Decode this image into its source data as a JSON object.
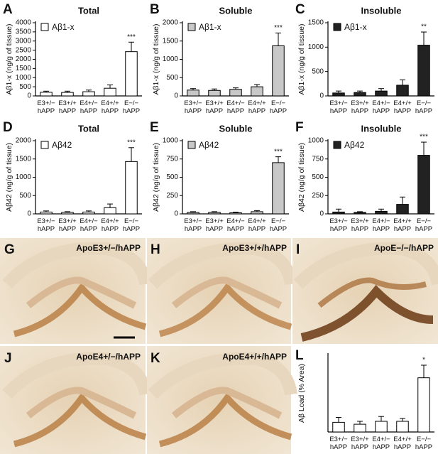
{
  "chart_data": [
    {
      "type": "bar",
      "panel": "A",
      "title": "Total",
      "ylabel": "Aβ1-x (ng/g of tissue)",
      "categories": [
        "E3+/− hAPP",
        "E3+/+ hAPP",
        "E4+/− hAPP",
        "E4+/+ hAPP",
        "E−/− hAPP"
      ],
      "series": [
        {
          "name": "Aβ1-x",
          "color": "#ffffff",
          "values": [
            200,
            190,
            230,
            420,
            2420
          ],
          "errors": [
            60,
            70,
            90,
            180,
            520
          ]
        }
      ],
      "significance": [
        null,
        null,
        null,
        null,
        "***"
      ],
      "ylim": [
        0,
        4000
      ],
      "yticks": [
        0,
        500,
        1000,
        1500,
        2000,
        2500,
        3000,
        3500,
        4000
      ]
    },
    {
      "type": "bar",
      "panel": "B",
      "title": "Soluble",
      "ylabel": "Aβ1-x (ng/g of tissue)",
      "categories": [
        "E3+/− hAPP",
        "E3+/+ hAPP",
        "E4+/− hAPP",
        "E4+/+ hAPP",
        "E−/− hAPP"
      ],
      "series": [
        {
          "name": "Aβ1-x",
          "color": "#c8c8c8",
          "values": [
            160,
            150,
            180,
            250,
            1370
          ],
          "errors": [
            40,
            40,
            40,
            60,
            350
          ]
        }
      ],
      "significance": [
        null,
        null,
        null,
        null,
        "***"
      ],
      "ylim": [
        0,
        2000
      ],
      "yticks": [
        0,
        500,
        1000,
        1500,
        2000
      ]
    },
    {
      "type": "bar",
      "panel": "C",
      "title": "Insoluble",
      "ylabel": "Aβ1-x (ng/g of tissue)",
      "categories": [
        "E3+/− hAPP",
        "E3+/+ hAPP",
        "E4+/− hAPP",
        "E4+/+ hAPP",
        "E−/− hAPP"
      ],
      "series": [
        {
          "name": "Aβ1-x",
          "color": "#222222",
          "values": [
            60,
            70,
            100,
            220,
            1040
          ],
          "errors": [
            40,
            30,
            50,
            110,
            270
          ]
        }
      ],
      "significance": [
        null,
        null,
        null,
        null,
        "**"
      ],
      "ylim": [
        0,
        1500
      ],
      "yticks": [
        0,
        500,
        1000,
        1500
      ]
    },
    {
      "type": "bar",
      "panel": "D",
      "title": "Total",
      "ylabel": "Aβ42 (ng/g of tissue)",
      "categories": [
        "E3+/− hAPP",
        "E3+/+ hAPP",
        "E4+/− hAPP",
        "E4+/+ hAPP",
        "E−/− hAPP"
      ],
      "series": [
        {
          "name": "Aβ42",
          "color": "#ffffff",
          "values": [
            50,
            40,
            50,
            170,
            1430
          ],
          "errors": [
            30,
            20,
            30,
            100,
            380
          ]
        }
      ],
      "significance": [
        null,
        null,
        null,
        null,
        "***"
      ],
      "ylim": [
        0,
        2000
      ],
      "yticks": [
        0,
        500,
        1000,
        1500,
        2000
      ]
    },
    {
      "type": "bar",
      "panel": "E",
      "title": "Soluble",
      "ylabel": "Aβ42 (ng/g of tissue)",
      "categories": [
        "E3+/− hAPP",
        "E3+/+ hAPP",
        "E4+/− hAPP",
        "E4+/+ hAPP",
        "E−/− hAPP"
      ],
      "series": [
        {
          "name": "Aβ42",
          "color": "#c8c8c8",
          "values": [
            20,
            20,
            15,
            30,
            700
          ],
          "errors": [
            10,
            10,
            8,
            15,
            80
          ]
        }
      ],
      "significance": [
        null,
        null,
        null,
        null,
        "***"
      ],
      "ylim": [
        0,
        1000
      ],
      "yticks": [
        0,
        250,
        500,
        750,
        1000
      ]
    },
    {
      "type": "bar",
      "panel": "F",
      "title": "Insoluble",
      "ylabel": "Aβ42 (ng/g of tissue)",
      "categories": [
        "E3+/− hAPP",
        "E3+/+ hAPP",
        "E4+/− hAPP",
        "E4+/+ hAPP",
        "E−/− hAPP"
      ],
      "series": [
        {
          "name": "Aβ42",
          "color": "#222222",
          "values": [
            25,
            20,
            35,
            130,
            800
          ],
          "errors": [
            40,
            10,
            30,
            100,
            180
          ]
        }
      ],
      "significance": [
        null,
        null,
        null,
        null,
        "***"
      ],
      "ylim": [
        0,
        1000
      ],
      "yticks": [
        0,
        250,
        500,
        750,
        1000
      ]
    },
    {
      "type": "bar",
      "panel": "L",
      "ylabel": "Aβ Load (% Area)",
      "categories": [
        "E3+/− hAPP",
        "E3+/+ hAPP",
        "E4+/− hAPP",
        "E4+/+ hAPP",
        "E−/− hAPP"
      ],
      "color": "#ffffff",
      "values": [
        0.5,
        0.4,
        0.55,
        0.55,
        2.8
      ],
      "errors": [
        0.25,
        0.15,
        0.25,
        0.15,
        0.65
      ],
      "significance": [
        null,
        null,
        null,
        null,
        "*"
      ],
      "ylim": [
        0,
        4
      ]
    }
  ],
  "micrographs": [
    {
      "panel": "G",
      "label": "ApoE3+/−/hAPP"
    },
    {
      "panel": "H",
      "label": "ApoE3+/+/hAPP"
    },
    {
      "panel": "I",
      "label": "ApoE−/−/hAPP"
    },
    {
      "panel": "J",
      "label": "ApoE4+/−/hAPP"
    },
    {
      "panel": "K",
      "label": "ApoE4+/+/hAPP"
    }
  ]
}
